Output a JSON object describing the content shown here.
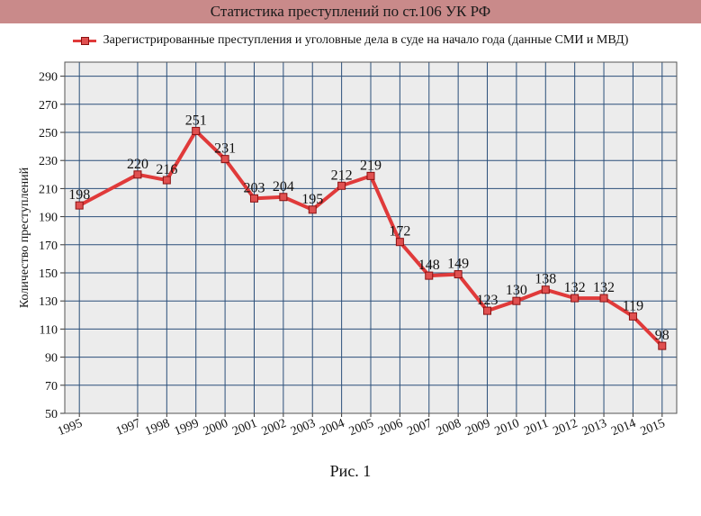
{
  "chart_data": {
    "type": "line",
    "title": "Статистика преступлений по ст.106 УК РФ",
    "ylabel": "Количество преступлений",
    "xlabel": "",
    "ylim": [
      50,
      300
    ],
    "yticks": [
      50,
      70,
      90,
      110,
      130,
      150,
      170,
      190,
      210,
      230,
      250,
      270,
      290
    ],
    "grid": true,
    "legend_position": "top-center",
    "x": [
      "1995",
      "1997",
      "1998",
      "1999",
      "2000",
      "2001",
      "2002",
      "2003",
      "2004",
      "2005",
      "2006",
      "2007",
      "2008",
      "2009",
      "2010",
      "2011",
      "2012",
      "2013",
      "2014",
      "2015"
    ],
    "series": [
      {
        "name": "Зарегистрированные преступления и уголовные дела в суде на начало года (данные СМИ и МВД)",
        "values": [
          198,
          220,
          216,
          251,
          231,
          203,
          204,
          195,
          212,
          219,
          172,
          148,
          149,
          123,
          130,
          138,
          132,
          132,
          119,
          98
        ]
      }
    ],
    "colors": {
      "line": "#e03a3a",
      "marker": "#e05050",
      "plot_bg": "#ececec",
      "grid": "#2b4f7a"
    }
  },
  "caption": "Рис. 1"
}
